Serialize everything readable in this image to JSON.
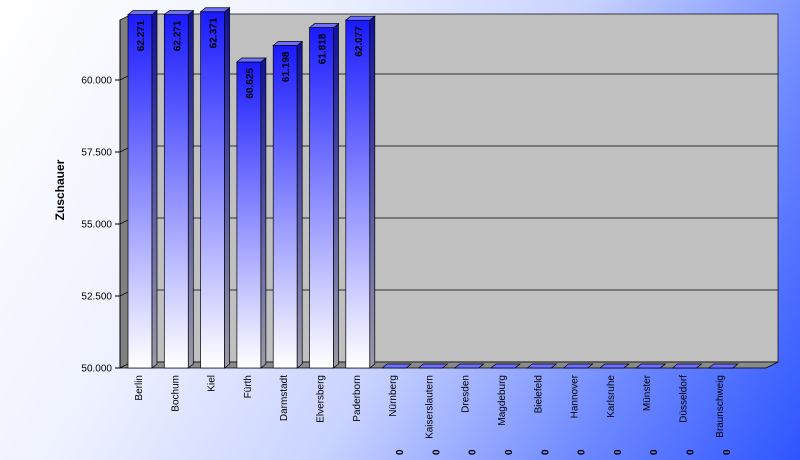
{
  "chart_data": {
    "type": "bar",
    "ylabel": "Zuschauer",
    "ylim": [
      50000,
      62500
    ],
    "y_ticks": [
      50000,
      52500,
      55000,
      57500,
      60000
    ],
    "y_tick_labels": [
      "50.000",
      "52.500",
      "55.000",
      "57.500",
      "60.000"
    ],
    "categories": [
      "Berlin",
      "Bochum",
      "Kiel",
      "Fürth",
      "Darmstadt",
      "Elversberg",
      "Paderborn",
      "Nürnberg",
      "Kaiserslautern",
      "Dresden",
      "Magdeburg",
      "Bielefeld",
      "Hannover",
      "Karlsruhe",
      "Münster",
      "Düsseldorf",
      "Braunschweig"
    ],
    "values": [
      62271,
      62271,
      62371,
      60625,
      61198,
      61818,
      62077,
      0,
      0,
      0,
      0,
      0,
      0,
      0,
      0,
      0,
      0
    ],
    "value_labels": [
      "62.271",
      "62.271",
      "62.371",
      "60.625",
      "61.198",
      "61.818",
      "62.077",
      "0",
      "0",
      "0",
      "0",
      "0",
      "0",
      "0",
      "0",
      "0",
      "0"
    ],
    "grid": true,
    "legend": "none",
    "colors": {
      "bar_top": "#1a1aff",
      "bar_bottom": "#ffffff",
      "plot_bg": "#c0c0c0",
      "floor": "#8a8a8a"
    }
  }
}
